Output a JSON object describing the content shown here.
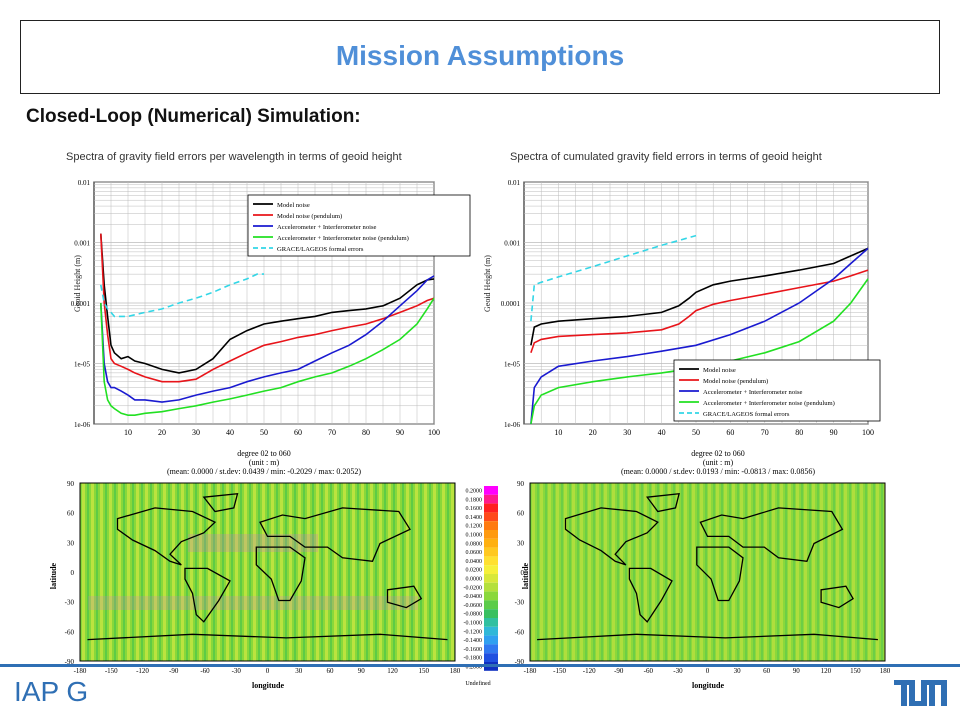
{
  "slide": {
    "title": "Mission Assumptions",
    "subtitle": "Closed-Loop (Numerical) Simulation:",
    "logo_left_text": "IAP G"
  },
  "legend_labels": {
    "model_noise": "Model noise",
    "model_noise_pendulum": "Model noise (pendulum)",
    "acc_ifo": "Accelerometer + Interferometer noise",
    "acc_ifo_pendulum": "Accelerometer + Interferometer noise (pendulum)",
    "grace_lageos": "GRACE/LAGEOS formal errors"
  },
  "colors": {
    "model_noise": "#000000",
    "model_noise_pendulum": "#e8141a",
    "acc_ifo": "#1a1ad0",
    "acc_ifo_pendulum": "#22e022",
    "grace_lageos": "#33d6e6",
    "title_blue": "#4f8fd8",
    "footer_blue": "#2f6fb4"
  },
  "chart_data": [
    {
      "type": "line",
      "title": "Spectra of gravity field errors per wavelength in terms of geoid height",
      "ylabel": "Geoid Height (m)",
      "xlabel": "",
      "log_y": true,
      "xlim": [
        0,
        100
      ],
      "ylim": [
        1e-06,
        0.01
      ],
      "grid": true,
      "legend": "top-right",
      "x_ticks": [
        "10",
        "20",
        "30",
        "40",
        "50",
        "60",
        "70",
        "80",
        "90",
        "100"
      ],
      "y_ticks": [
        "1e-06",
        "1e-05",
        "0.0001",
        "0.001",
        "0.01"
      ],
      "series": [
        {
          "name": "Model noise",
          "x": [
            2,
            3,
            4,
            5,
            6,
            8,
            10,
            12,
            15,
            20,
            25,
            30,
            35,
            40,
            45,
            50,
            55,
            60,
            65,
            70,
            75,
            80,
            85,
            90,
            95,
            98,
            100
          ],
          "y": [
            0.0014,
            0.0002,
            6e-05,
            2e-05,
            1.5e-05,
            1.2e-05,
            1.3e-05,
            1.1e-05,
            1e-05,
            8e-06,
            7e-06,
            8e-06,
            1.2e-05,
            2.5e-05,
            3.5e-05,
            4.5e-05,
            5e-05,
            5.5e-05,
            6e-05,
            7e-05,
            7.5e-05,
            8e-05,
            9e-05,
            0.00012,
            0.0002,
            0.00024,
            0.00025
          ]
        },
        {
          "name": "Model noise (pendulum)",
          "x": [
            2,
            3,
            4,
            5,
            6,
            8,
            10,
            12,
            15,
            20,
            25,
            30,
            35,
            40,
            45,
            50,
            55,
            60,
            65,
            70,
            75,
            80,
            85,
            90,
            95,
            98,
            100
          ],
          "y": [
            0.0014,
            0.0001,
            3e-05,
            1.2e-05,
            1e-05,
            9e-06,
            8e-06,
            7e-06,
            6e-06,
            5e-06,
            5e-06,
            5.5e-06,
            8e-06,
            1.1e-05,
            1.5e-05,
            2e-05,
            2.3e-05,
            2.7e-05,
            3e-05,
            3.5e-05,
            4e-05,
            4.5e-05,
            5.5e-05,
            7e-05,
            9e-05,
            0.00011,
            0.00012
          ]
        },
        {
          "name": "Accelerometer + Interferometer noise",
          "x": [
            2,
            3,
            4,
            5,
            6,
            8,
            10,
            12,
            15,
            20,
            25,
            30,
            35,
            40,
            45,
            50,
            55,
            60,
            65,
            70,
            75,
            80,
            85,
            90,
            95,
            98,
            100
          ],
          "y": [
            0.0001,
            1e-05,
            5e-06,
            4e-06,
            4e-06,
            3.5e-06,
            3e-06,
            2.5e-06,
            2.5e-06,
            2.3e-06,
            2.5e-06,
            3e-06,
            3.5e-06,
            4e-06,
            5e-06,
            6e-06,
            7e-06,
            8e-06,
            1.1e-05,
            1.5e-05,
            2e-05,
            3e-05,
            5e-05,
            9e-05,
            0.00016,
            0.00024,
            0.00028
          ]
        },
        {
          "name": "Accelerometer + Interferometer noise (pendulum)",
          "x": [
            2,
            3,
            4,
            5,
            6,
            8,
            10,
            12,
            15,
            20,
            25,
            30,
            35,
            40,
            45,
            50,
            55,
            60,
            65,
            70,
            75,
            80,
            85,
            90,
            95,
            98,
            100
          ],
          "y": [
            0.0001,
            5e-06,
            2.5e-06,
            2e-06,
            1.8e-06,
            1.5e-06,
            1.4e-06,
            1.4e-06,
            1.5e-06,
            1.6e-06,
            1.8e-06,
            2e-06,
            2.3e-06,
            2.6e-06,
            3e-06,
            3.5e-06,
            4e-06,
            5e-06,
            6e-06,
            7e-06,
            9e-06,
            1.2e-05,
            1.7e-05,
            2.5e-05,
            4.5e-05,
            8e-05,
            0.00012
          ]
        },
        {
          "name": "GRACE/LAGEOS formal errors",
          "x": [
            2,
            3,
            4,
            5,
            6,
            8,
            10,
            15,
            20,
            25,
            30,
            35,
            40,
            45,
            48,
            50
          ],
          "y": [
            0.0002,
            0.0001,
            8e-05,
            7e-05,
            6e-05,
            6e-05,
            6e-05,
            7e-05,
            8e-05,
            0.0001,
            0.00012,
            0.00015,
            0.0002,
            0.00025,
            0.0003,
            0.0003
          ]
        }
      ]
    },
    {
      "type": "line",
      "title": "Spectra of cumulated gravity field errors in terms of geoid height",
      "ylabel": "Geoid Height (m)",
      "xlabel": "",
      "log_y": true,
      "xlim": [
        0,
        100
      ],
      "ylim": [
        1e-06,
        0.01
      ],
      "grid": true,
      "legend": "bottom-right",
      "x_ticks": [
        "10",
        "20",
        "30",
        "40",
        "50",
        "60",
        "70",
        "80",
        "90",
        "100"
      ],
      "y_ticks": [
        "1e-06",
        "1e-05",
        "0.0001",
        "0.001",
        "0.01"
      ],
      "series": [
        {
          "name": "Model noise",
          "x": [
            2,
            3,
            5,
            10,
            20,
            30,
            40,
            45,
            48,
            50,
            55,
            60,
            70,
            80,
            90,
            95,
            100
          ],
          "y": [
            2e-05,
            4e-05,
            4.5e-05,
            5e-05,
            5.5e-05,
            6e-05,
            7e-05,
            9e-05,
            0.00012,
            0.00015,
            0.0002,
            0.00023,
            0.00028,
            0.00035,
            0.00045,
            0.0006,
            0.0008
          ]
        },
        {
          "name": "Model noise (pendulum)",
          "x": [
            2,
            3,
            5,
            10,
            20,
            30,
            40,
            45,
            48,
            50,
            55,
            60,
            70,
            80,
            90,
            95,
            100
          ],
          "y": [
            1.5e-05,
            2.2e-05,
            2.5e-05,
            2.8e-05,
            3e-05,
            3.2e-05,
            3.6e-05,
            4.5e-05,
            6e-05,
            7.5e-05,
            9.5e-05,
            0.00011,
            0.00014,
            0.00018,
            0.00023,
            0.00028,
            0.00035
          ]
        },
        {
          "name": "Accelerometer + Interferometer noise",
          "x": [
            2,
            3,
            5,
            10,
            20,
            30,
            40,
            50,
            60,
            70,
            80,
            90,
            95,
            100
          ],
          "y": [
            1e-06,
            4e-06,
            6e-06,
            9e-06,
            1.1e-05,
            1.3e-05,
            1.6e-05,
            2e-05,
            3e-05,
            5e-05,
            0.0001,
            0.00025,
            0.00045,
            0.0008
          ]
        },
        {
          "name": "Accelerometer + Interferometer noise (pendulum)",
          "x": [
            2,
            3,
            5,
            10,
            20,
            30,
            40,
            50,
            60,
            70,
            80,
            90,
            95,
            100
          ],
          "y": [
            1e-06,
            2e-06,
            3e-06,
            4e-06,
            5e-06,
            6e-06,
            7e-06,
            8.5e-06,
            1.1e-05,
            1.5e-05,
            2.3e-05,
            5e-05,
            0.0001,
            0.00025
          ]
        },
        {
          "name": "GRACE/LAGEOS formal errors",
          "x": [
            2,
            3,
            5,
            10,
            20,
            30,
            40,
            50
          ],
          "y": [
            5e-05,
            0.0002,
            0.00022,
            0.00027,
            0.0004,
            0.0006,
            0.0009,
            0.0013
          ]
        }
      ]
    },
    {
      "type": "heatmap",
      "header_line1": "degree 02 to 060",
      "header_line2": "(unit : m)",
      "stats_text": "(mean:  0.0000  /  st.dev:    0.0439  /  min:    -0.2029  /  max:    0.2052)",
      "xlabel": "longitude",
      "ylabel": "latitude",
      "x_ticks": [
        "-180",
        "-150",
        "-120",
        "-90",
        "-60",
        "-30",
        "0",
        "30",
        "60",
        "90",
        "120",
        "150",
        "180"
      ],
      "y_ticks": [
        "90",
        "60",
        "30",
        "0",
        "-30",
        "-60",
        "-90"
      ],
      "colorbar": [
        "0.2000",
        "0.1800",
        "0.1600",
        "0.1400",
        "0.1200",
        "0.1000",
        "0.0800",
        "0.0600",
        "0.0400",
        "0.0200",
        "0.0000",
        "-0.0200",
        "-0.0400",
        "-0.0600",
        "-0.0800",
        "-0.1000",
        "-0.1200",
        "-0.1400",
        "-0.1600",
        "-0.1800",
        "-0.2000"
      ],
      "colorbar_undefined": "Undefined"
    },
    {
      "type": "heatmap",
      "header_line1": "degree 02 to 060",
      "header_line2": "(unit : m)",
      "stats_text": "(mean:  0.0000  /  st.dev:    0.0193  /  min:    -0.0813  /  max:    0.0856)",
      "xlabel": "longitude",
      "ylabel": "latitude",
      "x_ticks": [
        "-180",
        "-150",
        "-120",
        "-90",
        "-60",
        "-30",
        "0",
        "30",
        "60",
        "90",
        "120",
        "150",
        "180"
      ],
      "y_ticks": [
        "90",
        "60",
        "30",
        "0",
        "-30",
        "-60",
        "-90"
      ]
    }
  ]
}
